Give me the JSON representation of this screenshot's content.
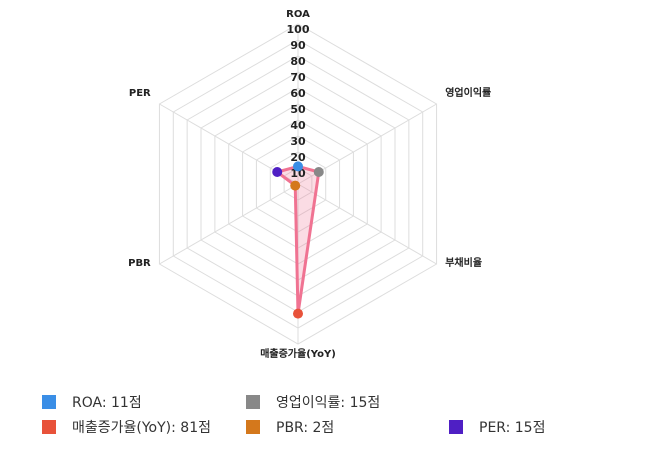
{
  "chart_data": {
    "type": "radar",
    "categories": [
      "ROA",
      "영업이익률",
      "부채비율",
      "매출증가율(YoY)",
      "PBR",
      "PER"
    ],
    "values": [
      11,
      15,
      null,
      81,
      2,
      15
    ],
    "value_labels": [
      "ROA: 11점",
      "영업이익률: 15점",
      null,
      "매출증가율(YoY): 81점",
      "PBR: 2점",
      "PER: 15점"
    ],
    "point_colors": [
      "#3a8ee6",
      "#888888",
      null,
      "#e8523a",
      "#d4781c",
      "#4f1fc4"
    ],
    "line_color": "#f07392",
    "fill_color": "rgba(240,115,146,0.25)",
    "rlim": [
      0,
      100
    ],
    "rticks": [
      10,
      20,
      30,
      40,
      50,
      60,
      70,
      80,
      90,
      100
    ],
    "grid": true
  }
}
